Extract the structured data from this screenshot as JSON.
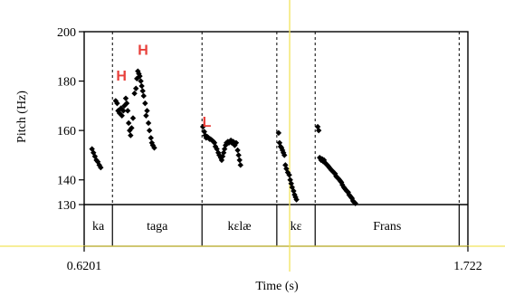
{
  "chart_data": {
    "type": "scatter",
    "ylabel": "Pitch (Hz)",
    "xlabel": "Time (s)",
    "ylim": [
      130,
      200
    ],
    "y_ticks": [
      {
        "value": 200,
        "label": "200"
      },
      {
        "value": 180,
        "label": "180"
      },
      {
        "value": 160,
        "label": "160"
      },
      {
        "value": 140,
        "label": "140"
      },
      {
        "value": 130,
        "label": "130"
      }
    ],
    "xlim": [
      0.6201,
      1.722
    ],
    "x_ticks": [
      {
        "value": 0.6201,
        "label": "0.6201"
      },
      {
        "value": 1.722,
        "label": "1.722"
      }
    ],
    "cursor_time": 1.2101,
    "interval_boundaries": [
      0.7013,
      0.9585,
      1.1733,
      1.2834,
      1.6969
    ],
    "intervals": [
      {
        "label": "ka",
        "start": 0.6201,
        "end": 0.7013
      },
      {
        "label": "taga",
        "start": 0.7013,
        "end": 0.9585
      },
      {
        "label": "kɛlæ",
        "start": 0.9585,
        "end": 1.1733
      },
      {
        "label": "kɛ",
        "start": 1.1733,
        "end": 1.2834
      },
      {
        "label": "Frans",
        "start": 1.2834,
        "end": 1.6969
      }
    ],
    "tone_labels": [
      {
        "label": "H",
        "x": 0.7271,
        "y": 182.5
      },
      {
        "label": "H",
        "x": 0.7892,
        "y": 192.8
      },
      {
        "label": "L",
        "x": 0.9722,
        "y": 163.8
      }
    ],
    "points": [
      [
        0.6426,
        152.5
      ],
      [
        0.6468,
        151.0
      ],
      [
        0.651,
        149.5
      ],
      [
        0.6552,
        148.0
      ],
      [
        0.6593,
        147.3
      ],
      [
        0.6635,
        146.0
      ],
      [
        0.6677,
        145.0
      ],
      [
        0.7106,
        172.0
      ],
      [
        0.7148,
        171.0
      ],
      [
        0.7175,
        168.0
      ],
      [
        0.7217,
        167.0
      ],
      [
        0.7258,
        169.0
      ],
      [
        0.7286,
        166.0
      ],
      [
        0.7327,
        168.0
      ],
      [
        0.7355,
        170.0
      ],
      [
        0.7396,
        173.0
      ],
      [
        0.7424,
        171.0
      ],
      [
        0.7452,
        168.0
      ],
      [
        0.7479,
        163.0
      ],
      [
        0.7507,
        160.0
      ],
      [
        0.7535,
        158.0
      ],
      [
        0.7563,
        161.0
      ],
      [
        0.7604,
        165.0
      ],
      [
        0.7646,
        175.0
      ],
      [
        0.7688,
        177.0
      ],
      [
        0.7715,
        181.0
      ],
      [
        0.7743,
        184.0
      ],
      [
        0.7771,
        183.0
      ],
      [
        0.7799,
        182.0
      ],
      [
        0.7827,
        180.0
      ],
      [
        0.7854,
        178.0
      ],
      [
        0.7882,
        176.0
      ],
      [
        0.791,
        174.0
      ],
      [
        0.7951,
        171.0
      ],
      [
        0.7979,
        166.0
      ],
      [
        0.8007,
        168.0
      ],
      [
        0.8048,
        163.0
      ],
      [
        0.8076,
        160.0
      ],
      [
        0.8118,
        157.0
      ],
      [
        0.8145,
        155.0
      ],
      [
        0.8173,
        154.0
      ],
      [
        0.8215,
        153.0
      ],
      [
        0.9609,
        161.5
      ],
      [
        0.9651,
        159.5
      ],
      [
        0.9678,
        158.0
      ],
      [
        0.9706,
        157.0
      ],
      [
        0.9734,
        157.5
      ],
      [
        0.9775,
        157.0
      ],
      [
        0.9803,
        156.5
      ],
      [
        0.9831,
        156.5
      ],
      [
        0.9873,
        156.0
      ],
      [
        0.9914,
        155.5
      ],
      [
        0.9942,
        155.0
      ],
      [
        0.997,
        153.5
      ],
      [
        1.0011,
        152.5
      ],
      [
        1.0053,
        151.0
      ],
      [
        1.0081,
        150.0
      ],
      [
        1.0122,
        149.0
      ],
      [
        1.015,
        148.0
      ],
      [
        1.0178,
        149.5
      ],
      [
        1.0206,
        151.0
      ],
      [
        1.0233,
        152.5
      ],
      [
        1.0261,
        154.0
      ],
      [
        1.0289,
        155.0
      ],
      [
        1.033,
        155.5
      ],
      [
        1.0358,
        155.0
      ],
      [
        1.0386,
        155.5
      ],
      [
        1.0414,
        156.0
      ],
      [
        1.0441,
        155.0
      ],
      [
        1.0483,
        155.5
      ],
      [
        1.0525,
        154.0
      ],
      [
        1.0566,
        155.0
      ],
      [
        1.0608,
        152.0
      ],
      [
        1.0636,
        150.0
      ],
      [
        1.0664,
        148.0
      ],
      [
        1.0691,
        146.0
      ],
      [
        1.1785,
        159.0
      ],
      [
        1.1812,
        155.0
      ],
      [
        1.184,
        153.5
      ],
      [
        1.1868,
        153.0
      ],
      [
        1.1896,
        152.0
      ],
      [
        1.1923,
        151.0
      ],
      [
        1.1951,
        150.0
      ],
      [
        1.1979,
        146.0
      ],
      [
        1.2007,
        144.5
      ],
      [
        1.2048,
        143.0
      ],
      [
        1.209,
        142.0
      ],
      [
        1.2118,
        140.0
      ],
      [
        1.2146,
        138.5
      ],
      [
        1.2173,
        137.0
      ],
      [
        1.2215,
        135.5
      ],
      [
        1.2243,
        134.0
      ],
      [
        1.2271,
        133.0
      ],
      [
        1.2298,
        132.0
      ],
      [
        1.2908,
        161.5
      ],
      [
        1.2936,
        160.0
      ],
      [
        1.2964,
        149.0
      ],
      [
        1.3005,
        148.0
      ],
      [
        1.3033,
        148.5
      ],
      [
        1.3061,
        147.5
      ],
      [
        1.3088,
        148.0
      ],
      [
        1.3116,
        147.0
      ],
      [
        1.3144,
        146.5
      ],
      [
        1.3185,
        146.0
      ],
      [
        1.3213,
        145.5
      ],
      [
        1.3241,
        145.0
      ],
      [
        1.3269,
        144.5
      ],
      [
        1.3296,
        144.0
      ],
      [
        1.3338,
        143.5
      ],
      [
        1.3366,
        143.0
      ],
      [
        1.3407,
        142.5
      ],
      [
        1.3435,
        141.5
      ],
      [
        1.3463,
        141.0
      ],
      [
        1.3504,
        140.5
      ],
      [
        1.3532,
        140.0
      ],
      [
        1.356,
        139.5
      ],
      [
        1.3588,
        139.0
      ],
      [
        1.3615,
        138.0
      ],
      [
        1.3657,
        137.0
      ],
      [
        1.3685,
        136.5
      ],
      [
        1.3712,
        136.0
      ],
      [
        1.374,
        135.5
      ],
      [
        1.3782,
        135.0
      ],
      [
        1.3809,
        134.0
      ],
      [
        1.3837,
        133.5
      ],
      [
        1.3865,
        133.0
      ],
      [
        1.3893,
        132.5
      ],
      [
        1.392,
        131.5
      ],
      [
        1.3948,
        131.0
      ],
      [
        1.399,
        130.5
      ]
    ],
    "colors": {
      "points": "#000000",
      "tone_labels": "#e8413c",
      "cursor": "#f2e35c",
      "frame": "#000000"
    }
  }
}
